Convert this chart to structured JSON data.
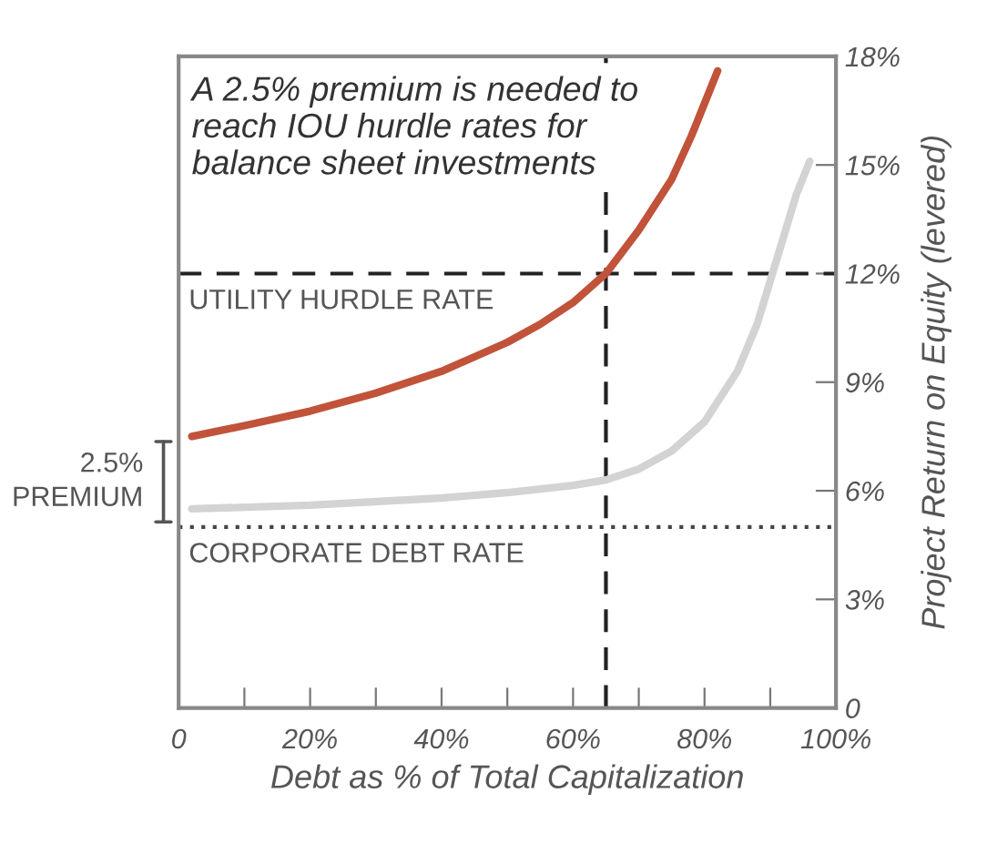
{
  "chart_data": {
    "type": "line",
    "xlabel": "Debt as % of Total Capitalization",
    "ylabel": "Project Return on Equity (levered)",
    "annotations": [
      "A 2.5% premium is needed to\nreach IOU hurdle rates for\nbalance sheet investments",
      "2.5%\nPREMIUM"
    ],
    "series": [
      {
        "color": "#c0533a",
        "x": [
          2,
          10,
          20,
          30,
          40,
          50,
          55,
          60,
          65,
          70,
          75,
          78,
          80,
          82
        ],
        "values": [
          7.5,
          7.8,
          8.2,
          8.7,
          9.3,
          10.1,
          10.6,
          11.2,
          12,
          13.2,
          14.6,
          15.8,
          16.7,
          17.6
        ]
      },
      {
        "color": "#d3d3d3",
        "x": [
          2,
          20,
          40,
          50,
          60,
          65,
          70,
          75,
          80,
          85,
          88,
          90,
          92,
          94,
          96
        ],
        "values": [
          5.5,
          5.6,
          5.8,
          5.95,
          6.15,
          6.3,
          6.6,
          7.1,
          7.9,
          9.3,
          10.6,
          11.8,
          13.0,
          14.2,
          15.1
        ]
      }
    ],
    "xlim": [
      0,
      100
    ],
    "ylim": [
      0,
      18
    ],
    "xticks": [
      {
        "value": 0,
        "label": "0"
      },
      {
        "value": 10,
        "label": null
      },
      {
        "value": 20,
        "label": "20%"
      },
      {
        "value": 30,
        "label": null
      },
      {
        "value": 40,
        "label": "40%"
      },
      {
        "value": 50,
        "label": null
      },
      {
        "value": 60,
        "label": "60%"
      },
      {
        "value": 70,
        "label": null
      },
      {
        "value": 80,
        "label": "80%"
      },
      {
        "value": 90,
        "label": null
      },
      {
        "value": 100,
        "label": "100%"
      }
    ],
    "yticks": [
      {
        "value": 0,
        "label": "0"
      },
      {
        "value": 3,
        "label": "3%"
      },
      {
        "value": 6,
        "label": "6%"
      },
      {
        "value": 9,
        "label": "9%"
      },
      {
        "value": 12,
        "label": "12%"
      },
      {
        "value": 15,
        "label": "15%"
      },
      {
        "value": 18,
        "label": "18%"
      }
    ],
    "ref_lines": [
      {
        "axis": "y",
        "value": 12,
        "label": "UTILITY HURDLE RATE",
        "color": "#222222",
        "line_style": "dashed"
      },
      {
        "axis": "y",
        "value": 5,
        "label": "CORPORATE DEBT RATE",
        "color": "#444444",
        "line_style": "dotted"
      },
      {
        "axis": "x",
        "value": 65,
        "color": "#222222",
        "line_style": "dashed"
      }
    ],
    "grid": false,
    "legend": false,
    "marker": "none",
    "line_style": "solid"
  }
}
